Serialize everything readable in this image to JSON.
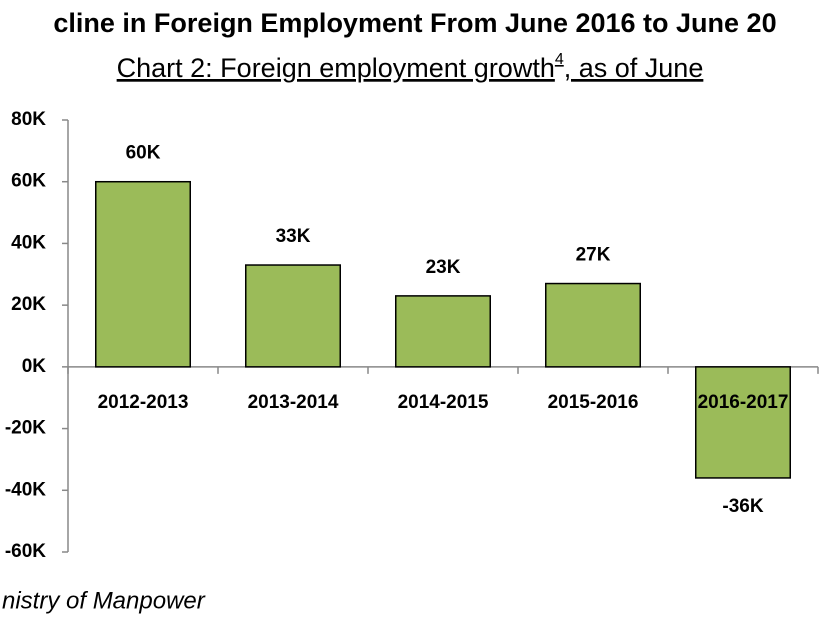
{
  "chart_data": {
    "type": "bar",
    "title": "cline in Foreign Employment From June 2016 to June 20",
    "subtitle": [
      "Chart 2:  Foreign employment growth",
      "4",
      ", as of June"
    ],
    "source": "nistry of Manpower",
    "categories": [
      "2012-2013",
      "2013-2014",
      "2014-2015",
      "2015-2016",
      "2016-2017"
    ],
    "values": [
      60000,
      33000,
      23000,
      27000,
      -36000
    ],
    "value_labels": [
      "60K",
      "33K",
      "23K",
      "27K",
      "-36K"
    ],
    "color": "#9bbb59",
    "ylim": [
      -60000,
      80000
    ],
    "yticks": [
      {
        "value": 80000,
        "label": "80K"
      },
      {
        "value": 60000,
        "label": "60K"
      },
      {
        "value": 40000,
        "label": "40K"
      },
      {
        "value": 20000,
        "label": "20K"
      },
      {
        "value": 0,
        "label": "0K"
      },
      {
        "value": -20000,
        "label": "-20K"
      },
      {
        "value": -40000,
        "label": "-40K"
      },
      {
        "value": -60000,
        "label": "-60K"
      }
    ],
    "grid": false
  }
}
